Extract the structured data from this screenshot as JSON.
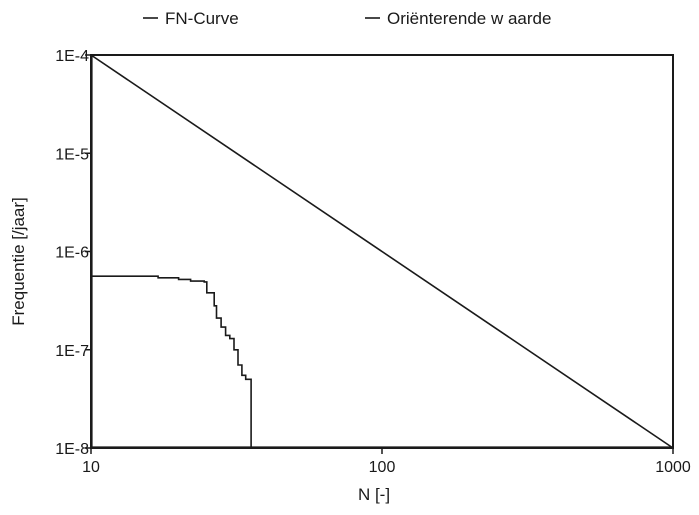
{
  "chart_data": {
    "type": "line",
    "xscale": "log",
    "yscale": "log",
    "xlim": [
      10,
      1000
    ],
    "ylim": [
      1e-08,
      0.0001
    ],
    "xlabel": "N [-]",
    "ylabel": "Frequentie [/jaar]",
    "xticks": [
      {
        "value": 10,
        "label": "10"
      },
      {
        "value": 100,
        "label": "100"
      },
      {
        "value": 1000,
        "label": "1000"
      }
    ],
    "yticks": [
      {
        "value": 0.0001,
        "label": "1E-4"
      },
      {
        "value": 1e-05,
        "label": "1E-5"
      },
      {
        "value": 1e-06,
        "label": "1E-6"
      },
      {
        "value": 1e-07,
        "label": "1E-7"
      },
      {
        "value": 1e-08,
        "label": "1E-8"
      }
    ],
    "grid": false,
    "legend_position": "top",
    "series": [
      {
        "name": "FN-Curve",
        "color": "#1a1a1a",
        "step": true,
        "x": [
          10,
          17,
          20,
          22,
          24.5,
          25,
          26.5,
          27,
          28,
          29,
          30,
          31,
          32,
          33,
          34,
          35,
          35.5
        ],
        "y": [
          5.6e-07,
          5.4e-07,
          5.2e-07,
          5e-07,
          4.9e-07,
          3.8e-07,
          2.8e-07,
          2.1e-07,
          1.7e-07,
          1.4e-07,
          1.3e-07,
          1e-07,
          7e-08,
          5.5e-08,
          5e-08,
          5e-08,
          1e-08
        ]
      },
      {
        "name": "Oriënterende w aarde",
        "color": "#1a1a1a",
        "step": false,
        "x": [
          10,
          1000
        ],
        "y": [
          0.0001,
          1e-08
        ]
      }
    ]
  }
}
